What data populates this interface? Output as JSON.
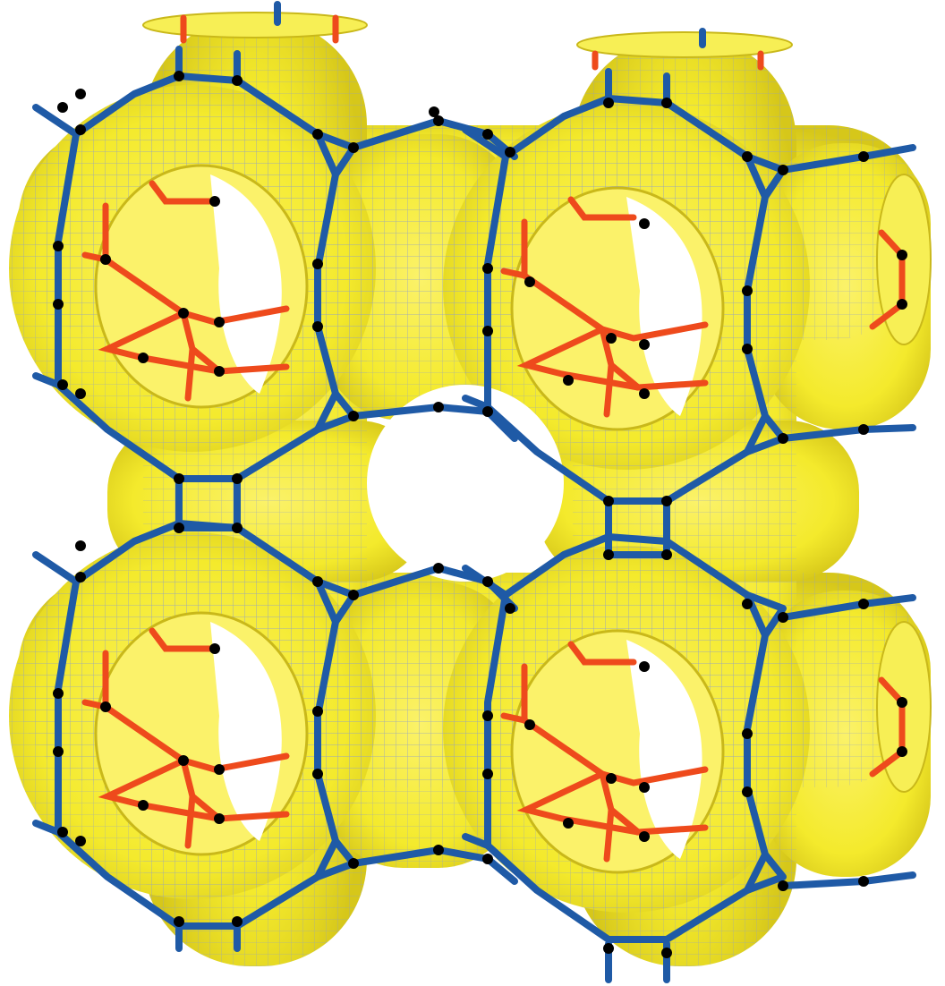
{
  "figure": {
    "colors": {
      "background": "#ffffff",
      "surface": "#f4ea2c",
      "surface_shade": "#d9c81c",
      "mesh": "#8f9fc8",
      "outer_network": "#1f5aa6",
      "inner_network": "#ee4a1c",
      "nodes": "#000000"
    },
    "cells": [
      {
        "name": "cell-top-left"
      },
      {
        "name": "cell-top-right"
      },
      {
        "name": "cell-bottom-left"
      },
      {
        "name": "cell-bottom-right"
      }
    ]
  }
}
